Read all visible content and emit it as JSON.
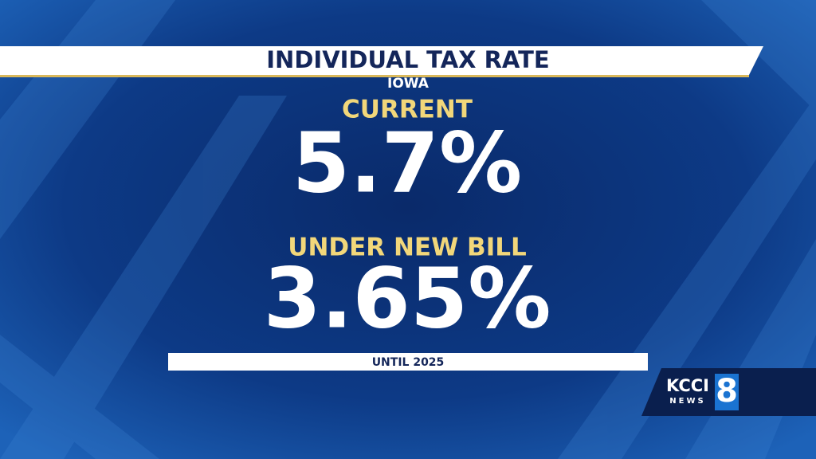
{
  "header": {
    "title": "INDIVIDUAL TAX RATE",
    "subtitle": "IOWA"
  },
  "current": {
    "label": "CURRENT",
    "rate": "5.7%"
  },
  "proposed": {
    "label": "UNDER NEW BILL",
    "rate": "3.65%"
  },
  "footnote": "UNTIL 2025",
  "logo": {
    "station": "KCCI",
    "news": "NEWS",
    "channel": "8"
  }
}
